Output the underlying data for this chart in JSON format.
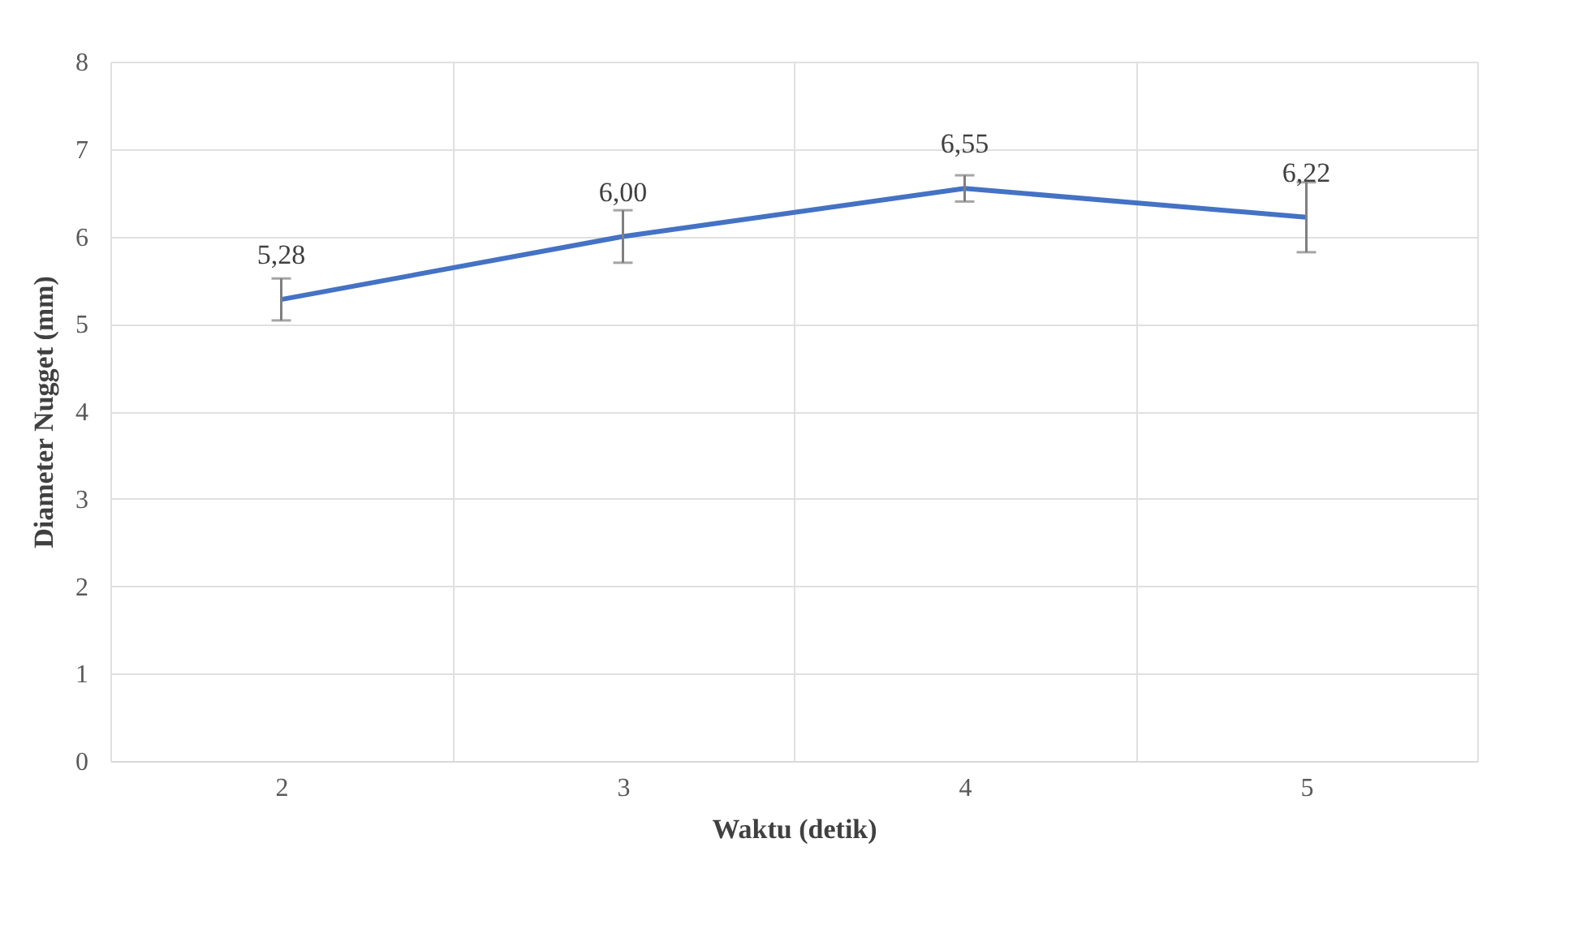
{
  "chart_data": {
    "type": "line",
    "xlabel": "Waktu (detik)",
    "ylabel": "Diameter Nugget (mm)",
    "categories": [
      "2",
      "3",
      "4",
      "5"
    ],
    "series": [
      {
        "color": "#4472c4",
        "values": [
          5.28,
          6.0,
          6.55,
          6.22
        ],
        "errors": [
          0.24,
          0.3,
          0.15,
          0.4
        ],
        "value_labels": [
          "5,28",
          "6,00",
          "6,55",
          "6,22"
        ]
      }
    ],
    "ylim": [
      0,
      8
    ],
    "yticks": [
      0,
      1,
      2,
      3,
      4,
      5,
      6,
      7,
      8
    ],
    "grid": true,
    "marker": "none",
    "line_style": "solid"
  }
}
